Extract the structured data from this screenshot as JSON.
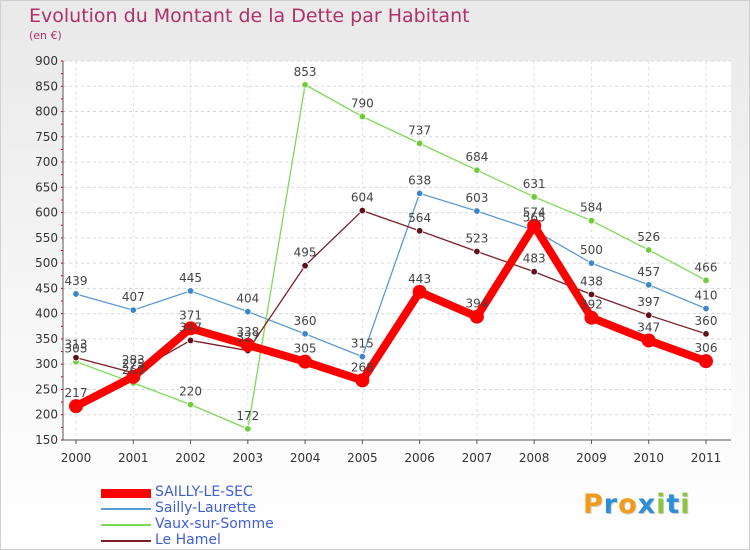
{
  "chart_data": {
    "type": "line",
    "title": "Evolution du Montant de la Dette par Habitant",
    "ylabel": "(en €)",
    "xlabel": "",
    "categories": [
      "2000",
      "2001",
      "2002",
      "2003",
      "2004",
      "2005",
      "2006",
      "2007",
      "2008",
      "2009",
      "2010",
      "2011"
    ],
    "ylim": [
      150,
      900
    ],
    "yticks": [
      150,
      200,
      250,
      300,
      350,
      400,
      450,
      500,
      550,
      600,
      650,
      700,
      750,
      800,
      850,
      900
    ],
    "grid": "horizontal dashed",
    "legend_position": "bottom-left",
    "series": [
      {
        "name": "SAILLY-LE-SEC",
        "color": "#ff0000",
        "values": [
          217,
          275,
          371,
          338,
          305,
          268,
          443,
          394,
          574,
          392,
          347,
          306
        ],
        "labels": [
          "217",
          "275",
          "371",
          "338",
          "305",
          "268",
          "443",
          "394",
          "574",
          "392",
          "347",
          "306"
        ]
      },
      {
        "name": "Sailly-Laurette",
        "color": "#5b9bd5",
        "values": [
          439,
          407,
          445,
          404,
          360,
          315,
          638,
          603,
          565,
          500,
          457,
          410
        ],
        "labels": [
          "439",
          "407",
          "445",
          "404",
          "360",
          "315",
          "638",
          "603",
          "565",
          "500",
          "457",
          "410"
        ]
      },
      {
        "name": "Vaux-sur-Somme",
        "color": "#7ed957",
        "values": [
          305,
          263,
          220,
          172,
          853,
          790,
          737,
          684,
          631,
          584,
          526,
          466
        ],
        "labels": [
          "305",
          "263",
          "220",
          "172",
          "853",
          "790",
          "737",
          "684",
          "631",
          "584",
          "526",
          "466"
        ]
      },
      {
        "name": "Le Hamel",
        "color": "#7a1f2a",
        "values": [
          313,
          283,
          347,
          327,
          495,
          604,
          564,
          523,
          483,
          438,
          397,
          360
        ],
        "labels": [
          "313",
          "283",
          "347",
          "327",
          "495",
          "604",
          "564",
          "523",
          "483",
          "438",
          "397",
          "360"
        ]
      }
    ]
  },
  "logo": {
    "letters": [
      "P",
      "r",
      "o",
      "x",
      "i",
      "t",
      "i"
    ],
    "colors": [
      "#f29a1a",
      "#2a8fd8",
      "#f29a1a",
      "#2a8fd8",
      "#8cc63f",
      "#2a8fd8",
      "#8cc63f"
    ]
  }
}
